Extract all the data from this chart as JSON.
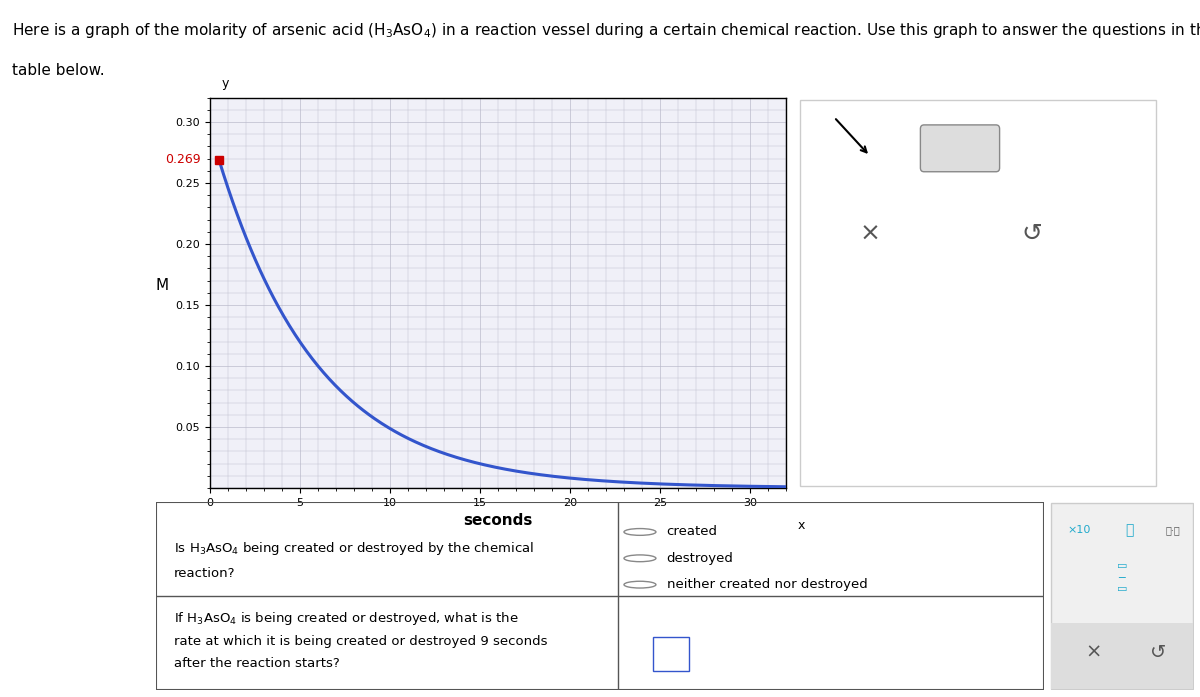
{
  "title_text": "Here is a graph of the molarity of arsenic acid $\\left(\\mathrm{H_3AsO_4}\\right)$ in a reaction vessel during a certain chemical reaction. Use this graph to answer the questions in the",
  "title_text2": "table below.",
  "ylabel": "M",
  "xlabel": "seconds",
  "y_axis_label": "y",
  "x_axis_label": "x",
  "ylim": [
    0,
    0.32
  ],
  "xlim": [
    0,
    32
  ],
  "yticks": [
    0.05,
    0.1,
    0.15,
    0.2,
    0.25,
    0.3
  ],
  "xticks": [
    0,
    5,
    10,
    15,
    20,
    25,
    30
  ],
  "initial_value": 0.269,
  "decay_constant": 0.18,
  "curve_color": "#3355cc",
  "marker_color": "#cc0000",
  "marker_value": 0.269,
  "annotation_color": "#cc0000",
  "annotation_text": "0.269",
  "grid_color": "#bbbbcc",
  "plot_bg": "#f0f0f8",
  "question1_text1": "Is $\\mathrm{H_3AsO_4}$ being created or destroyed by the chemical",
  "question1_text2": "reaction?",
  "option_created": "created",
  "option_destroyed": "destroyed",
  "option_neither": "neither created nor destroyed",
  "question2_text1": "If $\\mathrm{H_3AsO_4}$ is being created or destroyed, what is the",
  "question2_text2": "rate at which it is being created or destroyed 9 seconds",
  "question2_text3": "after the reaction starts?"
}
